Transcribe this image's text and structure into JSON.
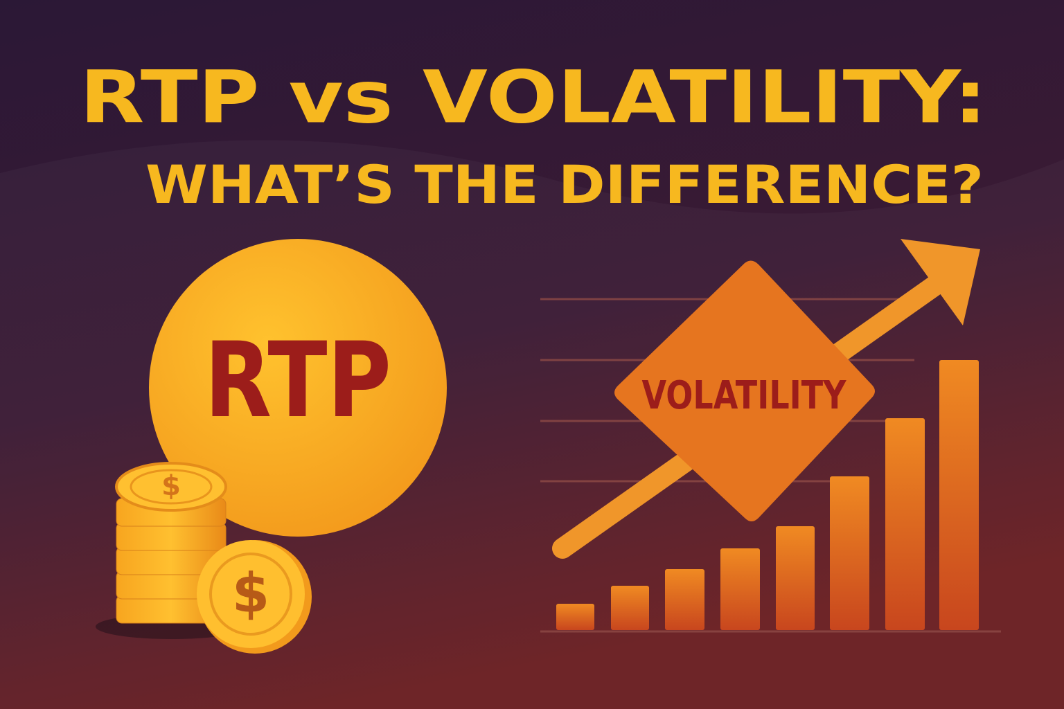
{
  "header": {
    "title_line1": "RTP vs VOLATILITY:",
    "title_line2": "WHAT’S THE DIFFERENCE?"
  },
  "rtp_badge": {
    "label": "RTP"
  },
  "volatility_sign": {
    "label": "VOLATILITY"
  },
  "coins": {
    "symbol": "$"
  }
}
